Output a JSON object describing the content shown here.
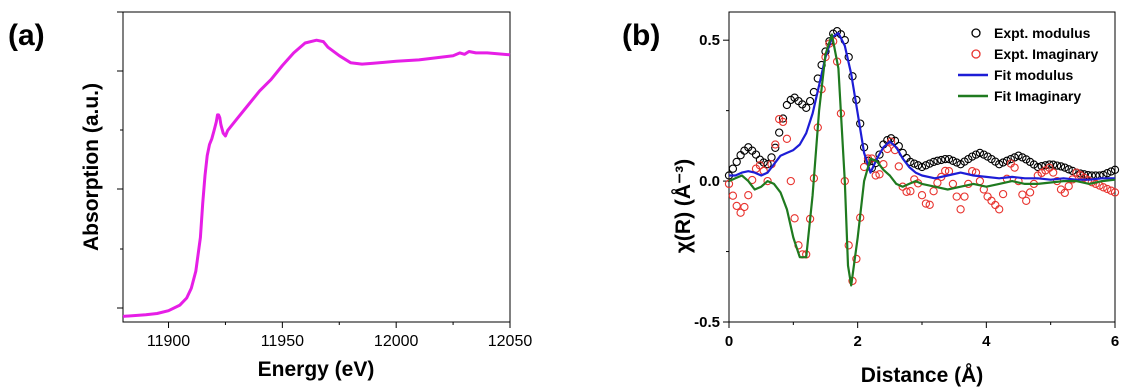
{
  "chart_data": [
    {
      "panel_label": "(a)",
      "type": "line",
      "xlabel": "Energy (eV)",
      "ylabel": "Absorption (a.u.)",
      "xlim": [
        11880,
        12050
      ],
      "ylim": [
        0,
        1.1
      ],
      "xticks": [
        11900,
        11950,
        12000,
        12050
      ],
      "y_tick_labels_shown": false,
      "series": [
        {
          "color": "#e61ee6",
          "x": [
            11880,
            11890,
            11895,
            11900,
            11905,
            11908,
            11910,
            11912,
            11914,
            11915,
            11916,
            11917,
            11918,
            11919,
            11920,
            11921,
            11921.5,
            11922,
            11922.5,
            11923,
            11924,
            11925,
            11926,
            11928,
            11930,
            11935,
            11940,
            11945,
            11950,
            11955,
            11960,
            11965,
            11968,
            11970,
            11975,
            11980,
            11985,
            11990,
            12000,
            12010,
            12020,
            12025,
            12028,
            12030,
            12032,
            12035,
            12040,
            12050
          ],
          "y": [
            0.02,
            0.026,
            0.03,
            0.04,
            0.06,
            0.085,
            0.12,
            0.18,
            0.3,
            0.42,
            0.52,
            0.59,
            0.63,
            0.65,
            0.68,
            0.71,
            0.735,
            0.735,
            0.725,
            0.7,
            0.67,
            0.66,
            0.68,
            0.7,
            0.72,
            0.77,
            0.82,
            0.86,
            0.91,
            0.955,
            0.99,
            1.0,
            0.995,
            0.975,
            0.945,
            0.92,
            0.915,
            0.918,
            0.925,
            0.93,
            0.94,
            0.945,
            0.955,
            0.95,
            0.96,
            0.955,
            0.955,
            0.948
          ]
        }
      ]
    },
    {
      "panel_label": "(b)",
      "type": "line",
      "xlabel": "Distance (Å)",
      "ylabel": "χ(R) (Å⁻³)",
      "xlim": [
        0,
        6
      ],
      "ylim": [
        -0.5,
        0.6
      ],
      "xticks": [
        0,
        2,
        4,
        6
      ],
      "yticks": [
        -0.5,
        0.0,
        0.5
      ],
      "ytick_labels": [
        "-0.5",
        "0.0",
        "0.5"
      ],
      "legend_position": "top-right",
      "series": [
        {
          "name": "Expt. modulus",
          "marker": "open-circle",
          "color": "#000000",
          "x": [
            0.0,
            0.1,
            0.2,
            0.3,
            0.4,
            0.5,
            0.6,
            0.7,
            0.8,
            0.9,
            1.0,
            1.1,
            1.2,
            1.3,
            1.4,
            1.5,
            1.6,
            1.7,
            1.8,
            1.9,
            2.0,
            2.1,
            2.2,
            2.3,
            2.4,
            2.5,
            2.6,
            2.7,
            2.8,
            2.9,
            3.0,
            3.2,
            3.4,
            3.6,
            3.8,
            3.9,
            4.0,
            4.2,
            4.4,
            4.5,
            4.6,
            4.8,
            5.0,
            5.2,
            5.4,
            5.6,
            5.8,
            6.0
          ],
          "y": [
            0.02,
            0.06,
            0.1,
            0.12,
            0.1,
            0.07,
            0.06,
            0.1,
            0.19,
            0.27,
            0.3,
            0.28,
            0.26,
            0.3,
            0.38,
            0.46,
            0.52,
            0.535,
            0.5,
            0.4,
            0.26,
            0.12,
            0.04,
            0.07,
            0.13,
            0.155,
            0.14,
            0.1,
            0.07,
            0.06,
            0.05,
            0.07,
            0.08,
            0.06,
            0.09,
            0.1,
            0.09,
            0.06,
            0.08,
            0.09,
            0.08,
            0.05,
            0.06,
            0.05,
            0.03,
            0.02,
            0.02,
            0.04
          ]
        },
        {
          "name": "Expt. Imaginary",
          "marker": "open-circle",
          "color": "#e8332e",
          "x": [
            0.0,
            0.1,
            0.2,
            0.3,
            0.4,
            0.5,
            0.6,
            0.7,
            0.8,
            0.9,
            1.0,
            1.1,
            1.2,
            1.3,
            1.4,
            1.5,
            1.6,
            1.7,
            1.8,
            1.9,
            2.0,
            2.1,
            2.2,
            2.3,
            2.4,
            2.5,
            2.6,
            2.7,
            2.8,
            2.9,
            3.0,
            3.1,
            3.2,
            3.4,
            3.6,
            3.8,
            4.0,
            4.2,
            4.4,
            4.6,
            4.8,
            5.0,
            5.2,
            5.4,
            5.6,
            5.8,
            6.0
          ],
          "y": [
            -0.01,
            -0.08,
            -0.12,
            -0.05,
            0.04,
            0.06,
            0.0,
            0.1,
            0.25,
            0.15,
            -0.1,
            -0.26,
            -0.26,
            -0.05,
            0.25,
            0.44,
            0.52,
            0.4,
            0.0,
            -0.38,
            -0.25,
            0.05,
            0.1,
            0.0,
            0.06,
            0.15,
            0.1,
            -0.02,
            -0.05,
            0.02,
            -0.05,
            -0.1,
            -0.02,
            0.05,
            -0.1,
            0.05,
            -0.05,
            -0.1,
            0.08,
            -0.08,
            0.02,
            0.05,
            -0.05,
            0.03,
            0.0,
            -0.02,
            -0.04
          ]
        },
        {
          "name": "Fit modulus",
          "line": "solid",
          "color": "#1d1dd6",
          "x": [
            0.0,
            0.1,
            0.2,
            0.3,
            0.4,
            0.5,
            0.6,
            0.7,
            0.8,
            0.9,
            1.0,
            1.1,
            1.2,
            1.3,
            1.4,
            1.5,
            1.6,
            1.7,
            1.8,
            1.9,
            2.0,
            2.1,
            2.2,
            2.3,
            2.4,
            2.5,
            2.6,
            2.7,
            2.8,
            2.9,
            3.0,
            3.2,
            3.4,
            3.6,
            3.8,
            4.0,
            4.2,
            4.4,
            4.6,
            4.8,
            5.0,
            5.2,
            5.4,
            5.6,
            5.8,
            6.0
          ],
          "y": [
            0.02,
            0.02,
            0.03,
            0.035,
            0.03,
            0.02,
            0.03,
            0.06,
            0.09,
            0.1,
            0.11,
            0.13,
            0.17,
            0.24,
            0.34,
            0.44,
            0.51,
            0.525,
            0.48,
            0.38,
            0.24,
            0.1,
            0.03,
            0.08,
            0.12,
            0.14,
            0.12,
            0.08,
            0.05,
            0.03,
            0.02,
            0.01,
            0.02,
            0.03,
            0.02,
            0.015,
            0.01,
            0.015,
            0.01,
            0.01,
            0.005,
            0.01,
            0.005,
            0.005,
            0.01,
            0.01
          ]
        },
        {
          "name": "Fit Imaginary",
          "line": "solid",
          "color": "#1f7a1f",
          "x": [
            0.0,
            0.1,
            0.2,
            0.3,
            0.4,
            0.5,
            0.6,
            0.7,
            0.8,
            0.9,
            1.0,
            1.1,
            1.2,
            1.3,
            1.4,
            1.5,
            1.6,
            1.7,
            1.8,
            1.85,
            1.9,
            2.0,
            2.1,
            2.2,
            2.3,
            2.4,
            2.5,
            2.6,
            2.7,
            2.8,
            2.9,
            3.0,
            3.2,
            3.4,
            3.6,
            3.8,
            4.0,
            4.2,
            4.4,
            4.6,
            4.8,
            5.0,
            5.2,
            5.4,
            5.6,
            5.8,
            6.0
          ],
          "y": [
            0.0,
            0.01,
            0.02,
            0.0,
            -0.03,
            -0.02,
            0.0,
            -0.01,
            -0.04,
            -0.1,
            -0.2,
            -0.27,
            -0.27,
            -0.05,
            0.25,
            0.45,
            0.52,
            0.4,
            0.0,
            -0.3,
            -0.37,
            -0.2,
            0.0,
            0.08,
            0.07,
            0.04,
            0.02,
            -0.01,
            -0.02,
            -0.01,
            0.0,
            -0.01,
            -0.02,
            -0.03,
            -0.02,
            -0.01,
            -0.02,
            -0.01,
            0.0,
            -0.01,
            -0.01,
            -0.005,
            0.0,
            0.0,
            -0.01,
            0.0,
            0.005
          ]
        }
      ]
    }
  ]
}
